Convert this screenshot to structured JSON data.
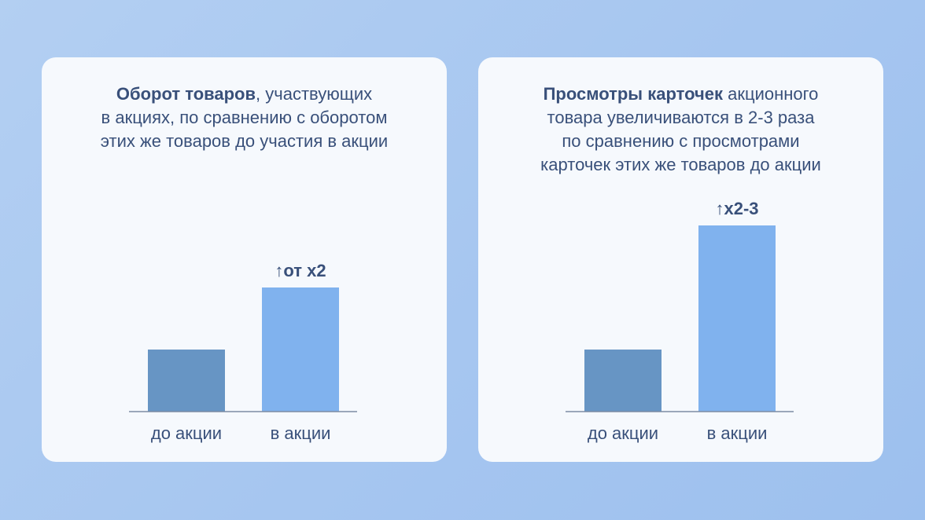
{
  "cards": [
    {
      "title_bold": "Оборот товаров",
      "title_line1_rest": ", участвующих",
      "title_line2": "в акциях, по сравнению с оборотом",
      "title_line3": "этих же товаров до участия в акции",
      "title_line4": ""
    },
    {
      "title_bold": "Просмотры карточек",
      "title_line1_rest": " акционного",
      "title_line2": "товара увеличиваются в 2-3 раза",
      "title_line3": "по сравнению с просмотрами",
      "title_line4": "карточек этих же товаров до акции"
    }
  ],
  "chart_data": [
    {
      "type": "bar",
      "categories": [
        "до акции",
        "в акции"
      ],
      "values": [
        1,
        2
      ],
      "ylim": [
        0,
        3
      ],
      "bar_colors": [
        "#6795c4",
        "#80b2ee"
      ],
      "annotation": "от x2",
      "annotation_arrow": "↑",
      "grid": false
    },
    {
      "type": "bar",
      "categories": [
        "до акции",
        "в акции"
      ],
      "values": [
        1,
        3
      ],
      "ylim": [
        0,
        3
      ],
      "bar_colors": [
        "#6795c4",
        "#80b2ee"
      ],
      "annotation": "x2-3",
      "annotation_arrow": "↑",
      "grid": false
    }
  ],
  "colors": {
    "text": "#39507a",
    "axis": "#7d8ca3",
    "card": "#f6f9fd"
  }
}
